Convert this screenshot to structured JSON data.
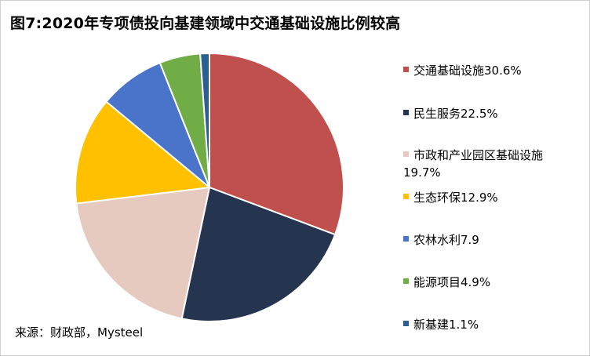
{
  "chart_data": {
    "type": "pie",
    "title": "图7:2020年专项债投向基建领域中交通基础设施比例较高",
    "start_angle": "12 o'clock, clockwise",
    "legend_position": "right",
    "slices": [
      {
        "name": "交通基础设施",
        "label": "交通基础设施30.6%",
        "value": 30.6,
        "color": "#c0504d"
      },
      {
        "name": "民生服务",
        "label": "民生服务22.5%",
        "value": 22.5,
        "color": "#26354f"
      },
      {
        "name": "市政和产业园区基础设施",
        "label": "市政和产业园区基础设施19.7%",
        "label_line1": "市政和产业园区基础设施",
        "label_line2": "19.7%",
        "value": 19.7,
        "color": "#e6c9bf"
      },
      {
        "name": "生态环保",
        "label": "生态环保12.9%",
        "value": 12.9,
        "color": "#ffc000"
      },
      {
        "name": "农林水利",
        "label": "农林水利7.9",
        "value": 7.9,
        "color": "#4a74c9"
      },
      {
        "name": "能源项目",
        "label": "能源项目4.9%",
        "value": 4.9,
        "color": "#70ad47"
      },
      {
        "name": "新基建",
        "label": "新基建1.1%",
        "value": 1.1,
        "color": "#2b5e93"
      }
    ]
  },
  "source": "来源：财政部，Mysteel"
}
